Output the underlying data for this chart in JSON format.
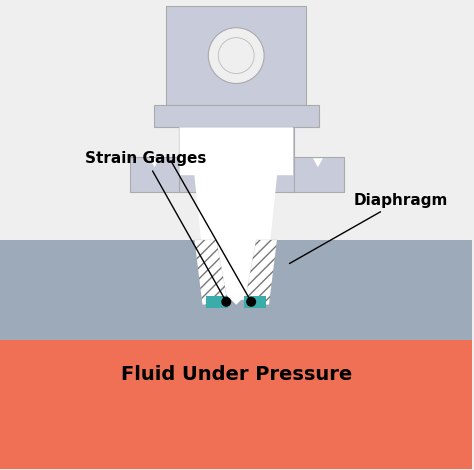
{
  "bg_color": "#efefef",
  "fluid_color": "#f07055",
  "body_color": "#9daaba",
  "sensor_color": "#c8ccda",
  "sensor_dark": "#b0b5c5",
  "teal_color": "#3aacaa",
  "label_strain": "Strain Gauges",
  "label_diaphragm": "Diaphragm",
  "label_fluid": "Fluid Under Pressure",
  "label_fontsize": 11,
  "fluid_fontsize": 14
}
